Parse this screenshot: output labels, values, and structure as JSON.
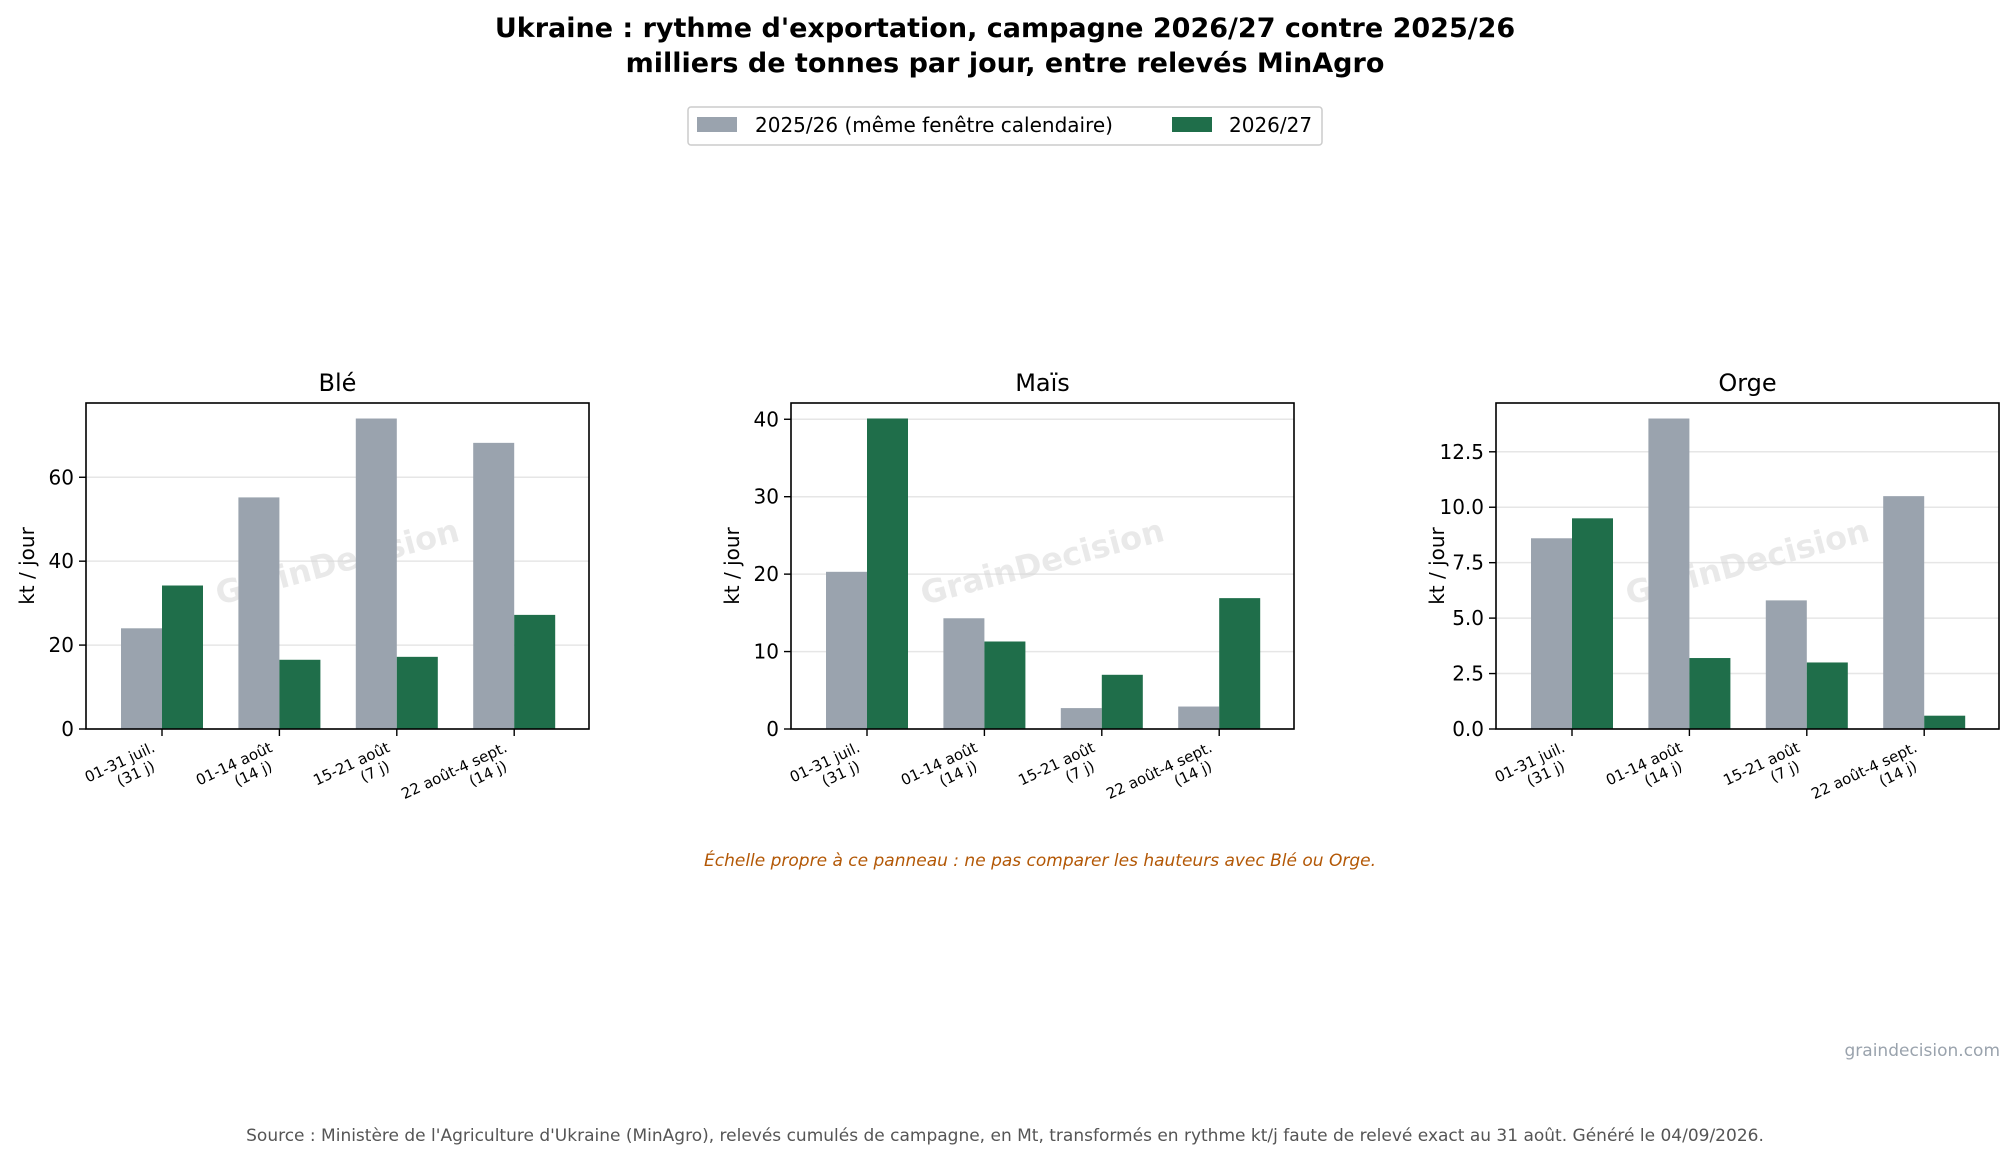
{
  "title_line1": "Ukraine : rythme d'exportation, campagne 2026/27 contre 2025/26",
  "title_line2": "milliers de tonnes par jour, entre relevés MinAgro",
  "legend": [
    {
      "label": "2025/26 (même fenêtre calendaire)",
      "color": "#9aa3ae"
    },
    {
      "label": "2026/27",
      "color": "#1f6e4a"
    }
  ],
  "watermark": "GrainDecision",
  "panel_note": "Échelle propre à ce panneau : ne pas comparer les hauteurs avec Blé ou Orge.",
  "site": "graindecision.com",
  "source": "Source : Ministère de l'Agriculture d'Ukraine (MinAgro), relevés cumulés de campagne, en Mt, transformés en rythme kt/j faute de relevé exact au 31 août. Généré le 04/09/2026.",
  "chart_data": [
    {
      "type": "bar",
      "title": "Blé",
      "ylabel": "kt / jour",
      "categories": [
        [
          "01-31 juil.",
          "(31 j)"
        ],
        [
          "01-14 août",
          "(14 j)"
        ],
        [
          "15-21 août",
          "(7 j)"
        ],
        [
          "22 août-4 sept.",
          "(14 j)"
        ]
      ],
      "series": [
        {
          "name": "2025/26 (même fenêtre calendaire)",
          "values": [
            24.0,
            55.2,
            74.0,
            68.2
          ]
        },
        {
          "name": "2026/27",
          "values": [
            34.2,
            16.5,
            17.2,
            27.2
          ]
        }
      ],
      "ylim": [
        0,
        77.7
      ],
      "yticks": [
        0,
        20,
        40,
        60
      ],
      "grid": "y"
    },
    {
      "type": "bar",
      "title": "Maïs",
      "ylabel": "kt / jour",
      "categories": [
        [
          "01-31 juil.",
          "(31 j)"
        ],
        [
          "01-14 août",
          "(14 j)"
        ],
        [
          "15-21 août",
          "(7 j)"
        ],
        [
          "22 août-4 sept.",
          "(14 j)"
        ]
      ],
      "series": [
        {
          "name": "2025/26 (même fenêtre calendaire)",
          "values": [
            20.3,
            14.3,
            2.7,
            2.9
          ]
        },
        {
          "name": "2026/27",
          "values": [
            40.1,
            11.3,
            7.0,
            16.9
          ]
        }
      ],
      "ylim": [
        0,
        42.1
      ],
      "yticks": [
        0,
        10,
        20,
        30,
        40
      ],
      "grid": "y"
    },
    {
      "type": "bar",
      "title": "Orge",
      "ylabel": "kt / jour",
      "categories": [
        [
          "01-31 juil.",
          "(31 j)"
        ],
        [
          "01-14 août",
          "(14 j)"
        ],
        [
          "15-21 août",
          "(7 j)"
        ],
        [
          "22 août-4 sept.",
          "(14 j)"
        ]
      ],
      "series": [
        {
          "name": "2025/26 (même fenêtre calendaire)",
          "values": [
            8.6,
            14.0,
            5.8,
            10.5
          ]
        },
        {
          "name": "2026/27",
          "values": [
            9.5,
            3.2,
            3.0,
            0.6
          ]
        }
      ],
      "ylim": [
        0,
        14.7
      ],
      "yticks": [
        0.0,
        2.5,
        5.0,
        7.5,
        10.0,
        12.5
      ],
      "grid": "y"
    }
  ]
}
